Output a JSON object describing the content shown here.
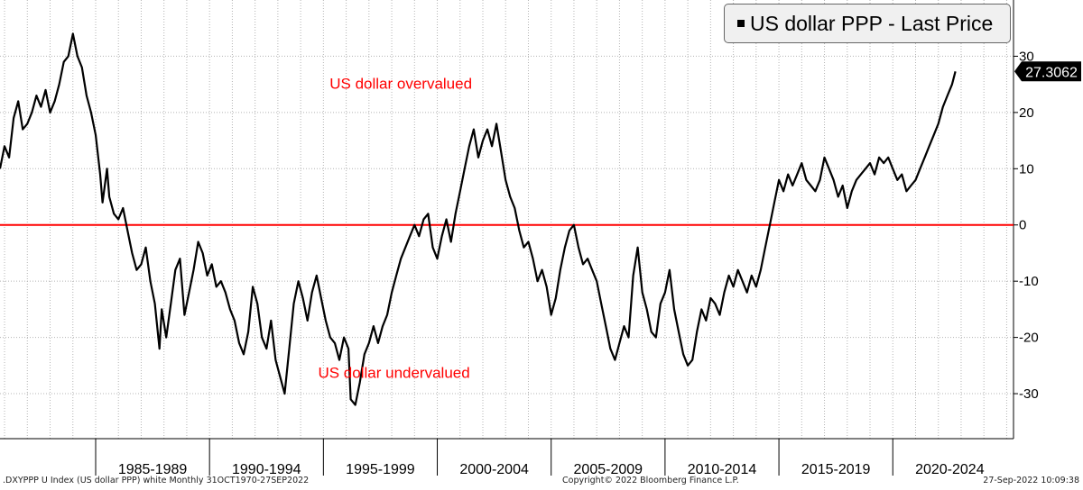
{
  "chart_data": {
    "type": "line",
    "legend": {
      "label": "US dollar PPP - Last Price",
      "position": "top-right"
    },
    "last_price_label": "27.3062",
    "y_ticks": [
      "30",
      "20",
      "10",
      "0",
      "-10",
      "-20",
      "-30"
    ],
    "y_tick_values": [
      30,
      20,
      10,
      0,
      -10,
      -20,
      -30
    ],
    "ylim": [
      -38,
      40
    ],
    "xlim": [
      1980.8,
      2025.3
    ],
    "categories": [
      "1985-1989",
      "1990-1994",
      "1995-1999",
      "2000-2004",
      "2005-2009",
      "2010-2014",
      "2015-2019",
      "2020-2024"
    ],
    "category_starts": [
      1985,
      1990,
      1995,
      2000,
      2005,
      2010,
      2015,
      2020
    ],
    "category_ends": [
      1990,
      1995,
      2000,
      2005,
      2010,
      2015,
      2020,
      2025
    ],
    "reference_line": {
      "value": 0,
      "color": "#ff0000"
    },
    "annotations": [
      {
        "text": "US dollar overvalued",
        "x": 1998.4,
        "y": 24.2
      },
      {
        "text": "US dollar undervalued",
        "x": 1998.1,
        "y": -27.2
      }
    ],
    "grid": true,
    "series": [
      {
        "color": "#000000",
        "points": [
          [
            1980.8,
            10
          ],
          [
            1981.0,
            14
          ],
          [
            1981.2,
            12
          ],
          [
            1981.4,
            19
          ],
          [
            1981.6,
            22
          ],
          [
            1981.8,
            17
          ],
          [
            1982.0,
            18
          ],
          [
            1982.2,
            20
          ],
          [
            1982.4,
            23
          ],
          [
            1982.6,
            21
          ],
          [
            1982.8,
            24
          ],
          [
            1983.0,
            20
          ],
          [
            1983.2,
            22
          ],
          [
            1983.4,
            25
          ],
          [
            1983.6,
            29
          ],
          [
            1983.8,
            30
          ],
          [
            1984.0,
            34
          ],
          [
            1984.2,
            30
          ],
          [
            1984.4,
            28
          ],
          [
            1984.6,
            23
          ],
          [
            1984.8,
            20
          ],
          [
            1985.0,
            16
          ],
          [
            1985.2,
            9
          ],
          [
            1985.3,
            4
          ],
          [
            1985.5,
            10
          ],
          [
            1985.6,
            5
          ],
          [
            1985.8,
            2
          ],
          [
            1986.0,
            1
          ],
          [
            1986.2,
            3
          ],
          [
            1986.4,
            -1
          ],
          [
            1986.6,
            -5
          ],
          [
            1986.8,
            -8
          ],
          [
            1987.0,
            -7
          ],
          [
            1987.2,
            -4
          ],
          [
            1987.4,
            -10
          ],
          [
            1987.6,
            -14
          ],
          [
            1987.8,
            -22
          ],
          [
            1987.9,
            -15
          ],
          [
            1988.1,
            -20
          ],
          [
            1988.3,
            -14
          ],
          [
            1988.5,
            -8
          ],
          [
            1988.7,
            -6
          ],
          [
            1988.9,
            -16
          ],
          [
            1989.1,
            -12
          ],
          [
            1989.3,
            -8
          ],
          [
            1989.5,
            -3
          ],
          [
            1989.7,
            -5
          ],
          [
            1989.9,
            -9
          ],
          [
            1990.1,
            -7
          ],
          [
            1990.3,
            -11
          ],
          [
            1990.5,
            -10
          ],
          [
            1990.7,
            -12
          ],
          [
            1990.9,
            -15
          ],
          [
            1991.1,
            -17
          ],
          [
            1991.3,
            -21
          ],
          [
            1991.5,
            -23
          ],
          [
            1991.7,
            -19
          ],
          [
            1991.9,
            -11
          ],
          [
            1992.1,
            -14
          ],
          [
            1992.3,
            -20
          ],
          [
            1992.5,
            -22
          ],
          [
            1992.7,
            -17
          ],
          [
            1992.9,
            -24
          ],
          [
            1993.1,
            -27
          ],
          [
            1993.3,
            -30
          ],
          [
            1993.5,
            -22
          ],
          [
            1993.7,
            -14
          ],
          [
            1993.9,
            -10
          ],
          [
            1994.1,
            -13
          ],
          [
            1994.3,
            -17
          ],
          [
            1994.5,
            -12
          ],
          [
            1994.7,
            -9
          ],
          [
            1994.9,
            -13
          ],
          [
            1995.1,
            -17
          ],
          [
            1995.3,
            -20
          ],
          [
            1995.5,
            -21
          ],
          [
            1995.7,
            -24
          ],
          [
            1995.9,
            -20
          ],
          [
            1996.1,
            -22
          ],
          [
            1996.2,
            -31
          ],
          [
            1996.4,
            -32
          ],
          [
            1996.6,
            -28
          ],
          [
            1996.8,
            -23
          ],
          [
            1997.0,
            -21
          ],
          [
            1997.2,
            -18
          ],
          [
            1997.4,
            -21
          ],
          [
            1997.6,
            -18
          ],
          [
            1997.8,
            -16
          ],
          [
            1998.0,
            -12
          ],
          [
            1998.2,
            -9
          ],
          [
            1998.4,
            -6
          ],
          [
            1998.6,
            -4
          ],
          [
            1998.8,
            -2
          ],
          [
            1999.0,
            0
          ],
          [
            1999.2,
            -2
          ],
          [
            1999.4,
            1
          ],
          [
            1999.6,
            2
          ],
          [
            1999.8,
            -4
          ],
          [
            2000.0,
            -6
          ],
          [
            2000.2,
            -2
          ],
          [
            2000.4,
            1
          ],
          [
            2000.6,
            -3
          ],
          [
            2000.8,
            2
          ],
          [
            2001.0,
            6
          ],
          [
            2001.2,
            10
          ],
          [
            2001.4,
            14
          ],
          [
            2001.6,
            17
          ],
          [
            2001.8,
            12
          ],
          [
            2002.0,
            15
          ],
          [
            2002.2,
            17
          ],
          [
            2002.4,
            14
          ],
          [
            2002.6,
            18
          ],
          [
            2002.8,
            13
          ],
          [
            2003.0,
            8
          ],
          [
            2003.2,
            5
          ],
          [
            2003.4,
            3
          ],
          [
            2003.6,
            -1
          ],
          [
            2003.8,
            -4
          ],
          [
            2004.0,
            -3
          ],
          [
            2004.2,
            -6
          ],
          [
            2004.4,
            -10
          ],
          [
            2004.6,
            -8
          ],
          [
            2004.8,
            -11
          ],
          [
            2005.0,
            -16
          ],
          [
            2005.2,
            -13
          ],
          [
            2005.4,
            -8
          ],
          [
            2005.6,
            -4
          ],
          [
            2005.8,
            -1
          ],
          [
            2006.0,
            0
          ],
          [
            2006.2,
            -4
          ],
          [
            2006.4,
            -7
          ],
          [
            2006.6,
            -6
          ],
          [
            2006.8,
            -8
          ],
          [
            2007.0,
            -10
          ],
          [
            2007.2,
            -14
          ],
          [
            2007.4,
            -18
          ],
          [
            2007.6,
            -22
          ],
          [
            2007.8,
            -24
          ],
          [
            2008.0,
            -21
          ],
          [
            2008.2,
            -18
          ],
          [
            2008.4,
            -20
          ],
          [
            2008.6,
            -9
          ],
          [
            2008.8,
            -4
          ],
          [
            2009.0,
            -12
          ],
          [
            2009.2,
            -15
          ],
          [
            2009.4,
            -19
          ],
          [
            2009.6,
            -20
          ],
          [
            2009.8,
            -14
          ],
          [
            2010.0,
            -12
          ],
          [
            2010.2,
            -8
          ],
          [
            2010.4,
            -15
          ],
          [
            2010.6,
            -19
          ],
          [
            2010.8,
            -23
          ],
          [
            2011.0,
            -25
          ],
          [
            2011.2,
            -24
          ],
          [
            2011.4,
            -19
          ],
          [
            2011.6,
            -15
          ],
          [
            2011.8,
            -17
          ],
          [
            2012.0,
            -13
          ],
          [
            2012.2,
            -14
          ],
          [
            2012.4,
            -16
          ],
          [
            2012.6,
            -12
          ],
          [
            2012.8,
            -9
          ],
          [
            2013.0,
            -11
          ],
          [
            2013.2,
            -8
          ],
          [
            2013.4,
            -10
          ],
          [
            2013.6,
            -12
          ],
          [
            2013.8,
            -9
          ],
          [
            2014.0,
            -11
          ],
          [
            2014.2,
            -8
          ],
          [
            2014.4,
            -4
          ],
          [
            2014.6,
            0
          ],
          [
            2014.8,
            4
          ],
          [
            2015.0,
            8
          ],
          [
            2015.2,
            6
          ],
          [
            2015.4,
            9
          ],
          [
            2015.6,
            7
          ],
          [
            2015.8,
            9
          ],
          [
            2016.0,
            11
          ],
          [
            2016.2,
            8
          ],
          [
            2016.4,
            7
          ],
          [
            2016.6,
            6
          ],
          [
            2016.8,
            8
          ],
          [
            2017.0,
            12
          ],
          [
            2017.2,
            10
          ],
          [
            2017.4,
            8
          ],
          [
            2017.6,
            5
          ],
          [
            2017.8,
            7
          ],
          [
            2018.0,
            3
          ],
          [
            2018.2,
            6
          ],
          [
            2018.4,
            8
          ],
          [
            2018.6,
            9
          ],
          [
            2018.8,
            10
          ],
          [
            2019.0,
            11
          ],
          [
            2019.2,
            9
          ],
          [
            2019.4,
            12
          ],
          [
            2019.6,
            11
          ],
          [
            2019.8,
            12
          ],
          [
            2020.0,
            10
          ],
          [
            2020.2,
            8
          ],
          [
            2020.4,
            9
          ],
          [
            2020.6,
            6
          ],
          [
            2020.8,
            7
          ],
          [
            2021.0,
            8
          ],
          [
            2021.2,
            10
          ],
          [
            2021.4,
            12
          ],
          [
            2021.6,
            14
          ],
          [
            2021.8,
            16
          ],
          [
            2022.0,
            18
          ],
          [
            2022.2,
            21
          ],
          [
            2022.4,
            23
          ],
          [
            2022.6,
            25
          ],
          [
            2022.75,
            27.3
          ]
        ]
      }
    ]
  },
  "footer": {
    "left": ".DXYPPP U Index (US dollar PPP) white  Monthly 31OCT1970-27SEP2022",
    "center": "Copyright© 2022 Bloomberg Finance L.P.",
    "right": "27-Sep-2022 10:09:38"
  }
}
